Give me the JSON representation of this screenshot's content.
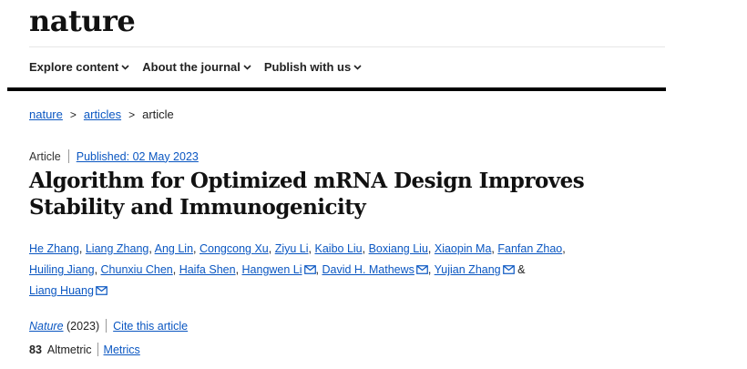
{
  "site": {
    "logo": "nature"
  },
  "nav": [
    {
      "label": "Explore content"
    },
    {
      "label": "About the journal"
    },
    {
      "label": "Publish with us"
    }
  ],
  "breadcrumb": {
    "items": [
      "nature",
      "articles",
      "article"
    ],
    "separator": ">"
  },
  "article_meta": {
    "type": "Article",
    "published": "Published: 02 May 2023"
  },
  "title": "Algorithm for Optimized mRNA Design Improves Stability and Immunogenicity",
  "authors": [
    {
      "name": "He Zhang"
    },
    {
      "name": "Liang Zhang"
    },
    {
      "name": "Ang Lin"
    },
    {
      "name": "Congcong Xu"
    },
    {
      "name": "Ziyu Li"
    },
    {
      "name": "Kaibo Liu"
    },
    {
      "name": "Boxiang Liu"
    },
    {
      "name": "Xiaopin Ma"
    },
    {
      "name": "Fanfan Zhao"
    },
    {
      "name": "Huiling Jiang"
    },
    {
      "name": "Chunxiu Chen"
    },
    {
      "name": "Haifa Shen"
    },
    {
      "name": "Hangwen Li",
      "email_icon": "mail-icon"
    },
    {
      "name": "David H. Mathews",
      "email_icon": "mail-icon"
    },
    {
      "name": "Yujian Zhang",
      "email_icon": "mail-icon"
    },
    {
      "name": "Liang Huang",
      "email_icon": "mail-icon"
    }
  ],
  "authors_and": "&",
  "citation": {
    "journal": "Nature",
    "year": "(2023)",
    "cite_link": "Cite this article"
  },
  "altmetric": {
    "score": "83",
    "label": "Altmetric",
    "metrics_link": "Metrics"
  },
  "colors": {
    "link": "#0b57c2",
    "text": "#222222",
    "rule": "#000000"
  }
}
